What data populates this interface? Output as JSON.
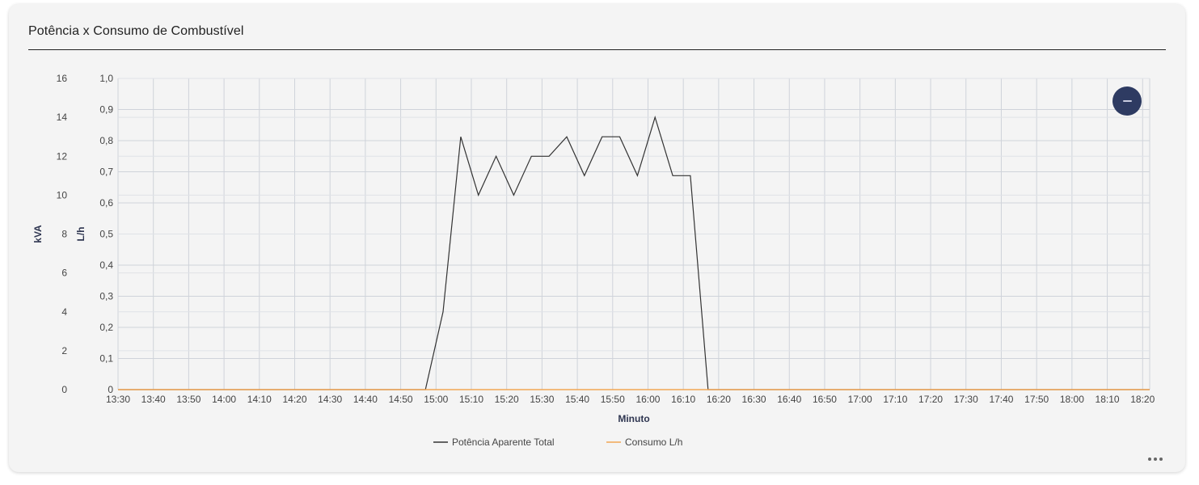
{
  "card": {
    "title": "Potência x Consumo de Combustível"
  },
  "chart_data": {
    "type": "line",
    "x_label": "Minuto",
    "x_ticks": [
      "13:30",
      "13:40",
      "13:50",
      "14:00",
      "14:10",
      "14:20",
      "14:30",
      "14:40",
      "14:50",
      "15:00",
      "15:10",
      "15:20",
      "15:30",
      "15:40",
      "15:50",
      "16:00",
      "16:10",
      "16:20",
      "16:30",
      "16:40",
      "16:50",
      "17:00",
      "17:10",
      "17:20",
      "17:30",
      "17:40",
      "17:50",
      "18:00",
      "18:10",
      "18:20"
    ],
    "y_left": {
      "label": "kVA",
      "ticks": [
        "0",
        "2",
        "4",
        "6",
        "8",
        "10",
        "12",
        "14",
        "16"
      ],
      "range": [
        0,
        16
      ]
    },
    "y_right": {
      "label": "L/h",
      "ticks": [
        "0",
        "0,1",
        "0,2",
        "0,3",
        "0,4",
        "0,5",
        "0,6",
        "0,7",
        "0,8",
        "0,9",
        "1,0"
      ],
      "range": [
        0,
        1.0
      ]
    },
    "x_range": [
      "13:30",
      "18:22"
    ],
    "grid": true,
    "legend_position": "bottom",
    "series": [
      {
        "name": "Potência Aparente Total",
        "axis": "kVA",
        "color": "#333333",
        "points": [
          [
            "13:30",
            0
          ],
          [
            "14:57",
            0
          ],
          [
            "15:02",
            4
          ],
          [
            "15:07",
            13.0
          ],
          [
            "15:12",
            10.0
          ],
          [
            "15:17",
            12.0
          ],
          [
            "15:22",
            10.0
          ],
          [
            "15:27",
            12.0
          ],
          [
            "15:32",
            12.0
          ],
          [
            "15:37",
            13.0
          ],
          [
            "15:42",
            11.0
          ],
          [
            "15:47",
            13.0
          ],
          [
            "15:52",
            13.0
          ],
          [
            "15:57",
            11.0
          ],
          [
            "16:02",
            14.0
          ],
          [
            "16:07",
            11.0
          ],
          [
            "16:12",
            11.0
          ],
          [
            "16:17",
            0
          ],
          [
            "18:22",
            0
          ]
        ]
      },
      {
        "name": "Consumo L/h",
        "axis": "L/h",
        "color": "#f2a654",
        "points": [
          [
            "13:30",
            0
          ],
          [
            "18:22",
            0
          ]
        ]
      }
    ]
  },
  "controls": {
    "fab_icon": "minus-icon",
    "menu_icon": "more-horizontal-icon"
  }
}
